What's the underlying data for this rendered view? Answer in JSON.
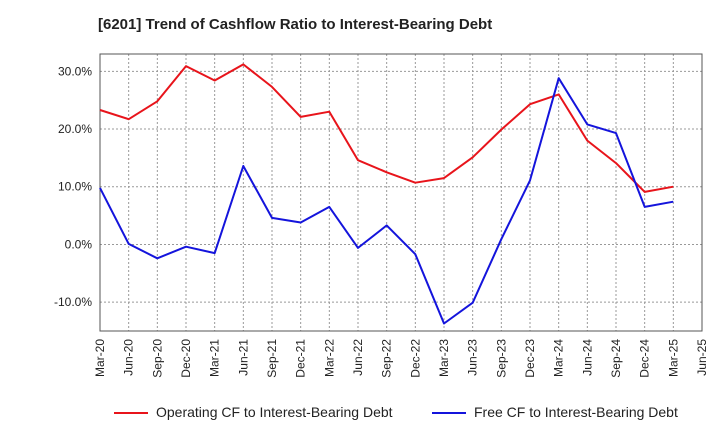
{
  "chart_data": {
    "type": "line",
    "title": "[6201]  Trend of Cashflow Ratio to Interest-Bearing Debt",
    "xlabel": "",
    "ylabel": "",
    "categories": [
      "Mar-20",
      "Jun-20",
      "Sep-20",
      "Dec-20",
      "Mar-21",
      "Jun-21",
      "Sep-21",
      "Dec-21",
      "Mar-22",
      "Jun-22",
      "Sep-22",
      "Dec-22",
      "Mar-23",
      "Jun-23",
      "Sep-23",
      "Dec-23",
      "Mar-24",
      "Jun-24",
      "Sep-24",
      "Dec-24",
      "Mar-25",
      "Jun-25"
    ],
    "ylim": [
      -15,
      33
    ],
    "yticks": [
      -10,
      0,
      10,
      20,
      30
    ],
    "ytick_labels": [
      "-10.0%",
      "0.0%",
      "10.0%",
      "20.0%",
      "30.0%"
    ],
    "grid": true,
    "legend_position": "bottom",
    "series": [
      {
        "name": "Operating CF to Interest-Bearing Debt",
        "color": "#e8141b",
        "values": [
          23.3,
          21.7,
          24.8,
          30.9,
          28.4,
          31.2,
          27.3,
          22.1,
          23.0,
          14.6,
          12.5,
          10.7,
          11.5,
          15.1,
          19.9,
          24.3,
          26.0,
          18.0,
          14.1,
          9.1,
          10.0,
          null
        ]
      },
      {
        "name": "Free CF to Interest-Bearing Debt",
        "color": "#1414dc",
        "values": [
          9.8,
          0.1,
          -2.4,
          -0.4,
          -1.5,
          13.6,
          4.6,
          3.8,
          6.5,
          -0.6,
          3.3,
          -1.7,
          -13.7,
          -10.1,
          0.9,
          11.1,
          28.8,
          20.8,
          19.3,
          6.5,
          7.4,
          null
        ]
      }
    ]
  }
}
